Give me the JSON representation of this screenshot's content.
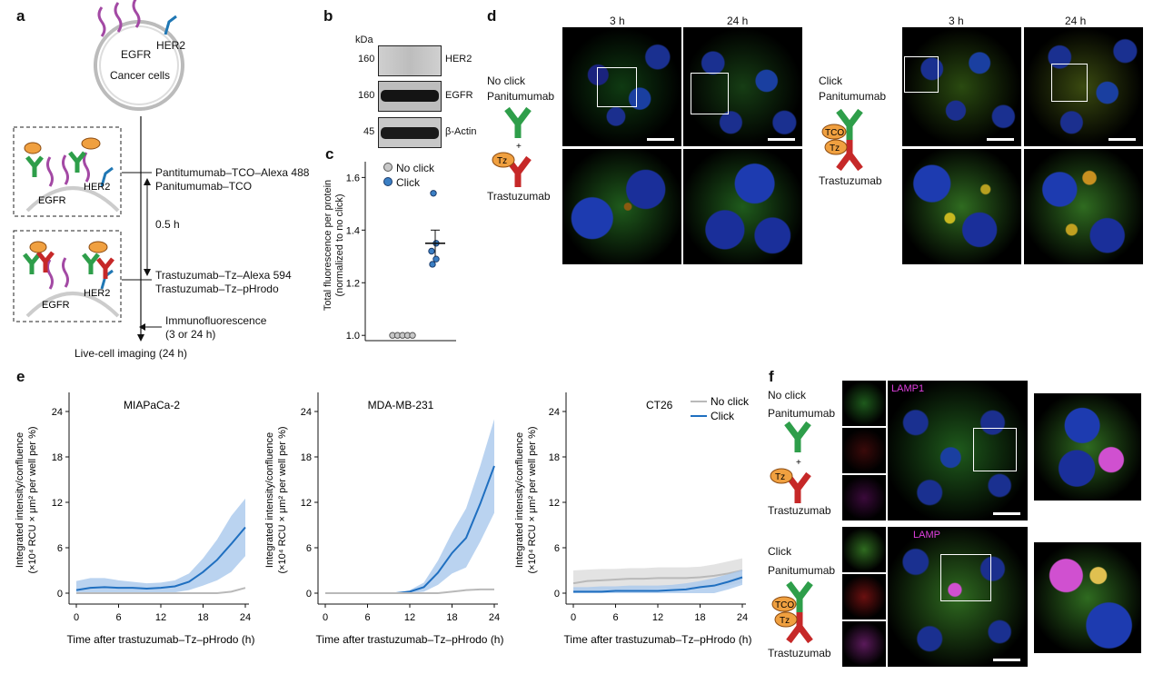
{
  "panel_labels": {
    "a": "a",
    "b": "b",
    "c": "c",
    "d": "d",
    "e": "e",
    "f": "f"
  },
  "panel_a": {
    "receptor1": "EGFR",
    "receptor2": "HER2",
    "cells": "Cancer cells",
    "step1_line1": "Pantitumumab–TCO–Alexa 488",
    "step1_line2": "Panitumumab–TCO",
    "interval": "0.5 h",
    "step2_line1": "Trastuzumab–Tz–Alexa 594",
    "step2_line2": "Trastuzumab–Tz–pHrodo",
    "if_line1": "Immunofluorescence",
    "if_line2": "(3 or 24 h)",
    "end": "Live-cell imaging (24 h)",
    "tco": "TCO",
    "tz": "Tz"
  },
  "panel_b": {
    "unit": "kDa",
    "rows": [
      {
        "kda": "160",
        "name": "HER2"
      },
      {
        "kda": "160",
        "name": "EGFR"
      },
      {
        "kda": "45",
        "name": "β-Actin"
      }
    ]
  },
  "panel_c": {
    "ylabel_line1": "Total fluorescence per protein",
    "ylabel_line2": "(normalized to no click)",
    "legend_noclick": "No click",
    "legend_click": "Click",
    "ticks": [
      "1.0",
      "1.2",
      "1.4",
      "1.6"
    ],
    "noclick_color": "#c8c8c8",
    "click_color": "#3b7fc4"
  },
  "panel_d": {
    "time1": "3 h",
    "time2": "24 h",
    "noclick": "No click",
    "click": "Click",
    "ab1": "Panitumumab",
    "ab2": "Trastuzumab",
    "plus": "+",
    "tco": "TCO",
    "tz": "Tz"
  },
  "panel_e": {
    "plot_titles": [
      "MIAPaCa-2",
      "MDA-MB-231",
      "CT26"
    ],
    "xlabel": "Time after trastuzumab–Tz–pHrodo (h)",
    "ylabel_line1": "Integrated intensity/confluence",
    "ylabel_line2": "(×10⁴ RCU × μm² per well per %)",
    "legend_noclick": "No click",
    "legend_click": "Click",
    "xticks": [
      "0",
      "6",
      "12",
      "18",
      "24"
    ],
    "yticks": [
      "0",
      "6",
      "12",
      "18",
      "24"
    ],
    "click_color": "#1f6fc0",
    "noclick_color": "#b9b9b9"
  },
  "panel_f": {
    "noclick": "No click",
    "click": "Click",
    "ab1": "Panitumumab",
    "ab2": "Trastuzumab",
    "lamp": "LAMP1",
    "lamp_partial": "LAMP",
    "plus": "+",
    "tco": "TCO",
    "tz": "Tz"
  },
  "chart_data": [
    {
      "type": "scatter",
      "panel": "c",
      "ylabel": "Total fluorescence per protein (normalized to no click)",
      "ylim": [
        0.98,
        1.66
      ],
      "series": [
        {
          "name": "No click",
          "values": [
            1.0,
            1.0,
            1.0,
            1.0,
            1.0
          ]
        },
        {
          "name": "Click",
          "values": [
            1.54,
            1.35,
            1.32,
            1.29,
            1.27
          ],
          "mean": 1.35,
          "sem": 0.05
        }
      ]
    },
    {
      "type": "line",
      "panel": "e",
      "title": "MIAPaCa-2",
      "x": [
        0,
        2,
        4,
        6,
        8,
        10,
        12,
        14,
        16,
        18,
        20,
        22,
        24
      ],
      "xlim": [
        0,
        24
      ],
      "ylim": [
        0,
        24
      ],
      "series": [
        {
          "name": "Click",
          "values": [
            0.4,
            0.7,
            0.8,
            0.7,
            0.7,
            0.6,
            0.7,
            0.9,
            1.5,
            2.8,
            4.4,
            6.5,
            8.7
          ],
          "band": [
            1.6,
            2.0,
            2.0,
            1.7,
            1.5,
            1.3,
            1.4,
            1.7,
            2.6,
            4.6,
            7.1,
            10.2,
            12.5
          ]
        },
        {
          "name": "No click",
          "values": [
            0,
            0,
            0,
            0,
            0,
            0,
            0,
            0,
            0,
            0,
            0,
            0.2,
            0.7
          ]
        }
      ]
    },
    {
      "type": "line",
      "panel": "e",
      "title": "MDA-MB-231",
      "x": [
        0,
        2,
        4,
        6,
        8,
        10,
        12,
        14,
        16,
        18,
        20,
        22,
        24
      ],
      "xlim": [
        0,
        24
      ],
      "ylim": [
        0,
        24
      ],
      "series": [
        {
          "name": "Click",
          "values": [
            0,
            0,
            0,
            0,
            0,
            0,
            0.2,
            0.8,
            2.7,
            5.3,
            7.3,
            11.8,
            16.8
          ],
          "band": [
            0,
            0,
            0,
            0,
            0,
            0,
            0.4,
            1.4,
            4.3,
            8.0,
            11.2,
            16.8,
            23.0
          ]
        },
        {
          "name": "No click",
          "values": [
            0,
            0,
            0,
            0,
            0,
            0,
            0,
            0,
            0,
            0.2,
            0.4,
            0.5,
            0.5
          ]
        }
      ]
    },
    {
      "type": "line",
      "panel": "e",
      "title": "CT26",
      "x": [
        0,
        2,
        4,
        6,
        8,
        10,
        12,
        14,
        16,
        18,
        20,
        22,
        24
      ],
      "xlim": [
        0,
        24
      ],
      "ylim": [
        0,
        24
      ],
      "series": [
        {
          "name": "No click",
          "values": [
            1.3,
            1.6,
            1.7,
            1.8,
            1.9,
            1.9,
            2.0,
            2.0,
            2.0,
            2.1,
            2.3,
            2.6,
            3.0
          ],
          "band": [
            3.0,
            3.1,
            3.2,
            3.2,
            3.3,
            3.3,
            3.4,
            3.4,
            3.4,
            3.5,
            3.8,
            4.2,
            4.6
          ]
        },
        {
          "name": "Click",
          "values": [
            0.2,
            0.2,
            0.2,
            0.3,
            0.3,
            0.3,
            0.3,
            0.4,
            0.5,
            0.8,
            1.0,
            1.5,
            2.1
          ],
          "band": [
            0.8,
            0.8,
            0.9,
            0.9,
            1.0,
            1.0,
            1.0,
            1.1,
            1.3,
            1.6,
            2.0,
            2.5,
            3.1
          ]
        }
      ]
    }
  ]
}
